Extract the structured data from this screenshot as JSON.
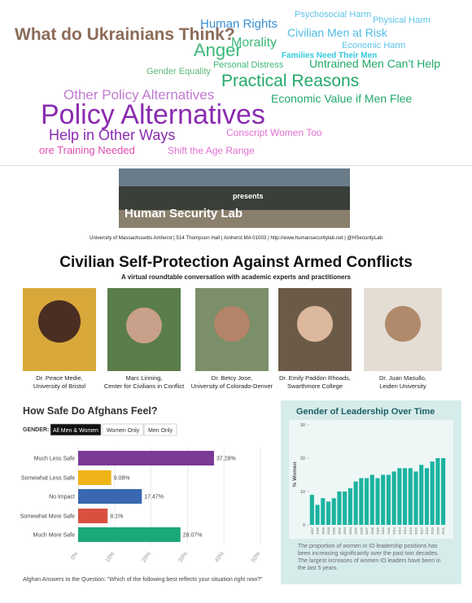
{
  "word_cloud": {
    "words": [
      {
        "text": "What do Ukrainians Think?",
        "color": "#8b6b58"
      },
      {
        "text": "Human Rights",
        "color": "#3a8fd0"
      },
      {
        "text": "Psychosocial Harm",
        "color": "#5cc3e8"
      },
      {
        "text": "Physical Harm",
        "color": "#5cc3e8"
      },
      {
        "text": "Morality",
        "color": "#3cb878"
      },
      {
        "text": "Civilian Men at Risk",
        "color": "#4fbde6"
      },
      {
        "text": "Economic Harm",
        "color": "#5cc3e8"
      },
      {
        "text": "Anger",
        "color": "#3cb878"
      },
      {
        "text": "Families Need Their Men",
        "color": "#33c9dd"
      },
      {
        "text": "Gender Equality",
        "color": "#5fb87a"
      },
      {
        "text": "Personal Distress",
        "color": "#3cb878"
      },
      {
        "text": "Untrained Men Can’t Help",
        "color": "#22a86a"
      },
      {
        "text": "Practical Reasons",
        "color": "#22a86a"
      },
      {
        "text": "Other Policy Alternatives",
        "color": "#c07ad0"
      },
      {
        "text": "Economic Value if Men Flee",
        "color": "#22a86a"
      },
      {
        "text": "Policy Alternatives",
        "color": "#8a2bb0"
      },
      {
        "text": "Help in Other Ways",
        "color": "#8a2bb0"
      },
      {
        "text": "Conscript Women Too",
        "color": "#e070d0"
      },
      {
        "text": "ore Training Needed",
        "color": "#e04cb0"
      },
      {
        "text": "Shift the Age Range",
        "color": "#e070d0"
      }
    ]
  },
  "banner": {
    "logo_text": "Human Security Lab",
    "presents": "presents",
    "address": "University of Massachusetts Amherst | 514 Thompson Hall | Amherst MA 01003 | http://www.humansecuritylab.net | @HSecurityLab"
  },
  "event": {
    "title": "Civilian Self-Protection Against Armed Conflicts",
    "subtitle": "A virtual roundtable conversation with academic experts and practitioners",
    "speakers": [
      {
        "name": "Dr. Peace Medie,",
        "affiliation": "University of Bristol"
      },
      {
        "name": "Marc Linning,",
        "affiliation": "Center for Civilians in Conflict"
      },
      {
        "name": "Dr. Betcy Jose,",
        "affiliation": "University of Colorado-Denver"
      },
      {
        "name": "Dr. Emily Paddon Rhoads,",
        "affiliation": "Swarthmore College"
      },
      {
        "name": "Dr. Juan Masullo,",
        "affiliation": "Leiden University"
      }
    ]
  },
  "chart_data": [
    {
      "type": "hbar",
      "title": "How Safe Do Afghans Feel?",
      "filter_label": "GENDER:",
      "filter_options": [
        "All Men & Women",
        "Women Only",
        "Men Only"
      ],
      "categories": [
        "Much Less Safe",
        "Somewhat Less Safe",
        "No Impact",
        "Somewhat More Safe",
        "Much More Safe"
      ],
      "values": [
        37.28,
        9.08,
        17.47,
        8.1,
        28.07
      ],
      "value_labels": [
        "37.28%",
        "9.08%",
        "17.47%",
        "8.1%",
        "28.07%"
      ],
      "colors": [
        "#7b3a96",
        "#f0b418",
        "#3a68b0",
        "#d9503f",
        "#1ba878"
      ],
      "xlim": [
        0,
        50
      ],
      "xticks": [
        {
          "value": 0,
          "label": "0%"
        },
        {
          "value": 10,
          "label": "10%"
        },
        {
          "value": 20,
          "label": "20%"
        },
        {
          "value": 30,
          "label": "30%"
        },
        {
          "value": 40,
          "label": "40%"
        },
        {
          "value": 50,
          "label": "50%"
        }
      ],
      "grid": true,
      "caption": "Afghan Answers to the Question: \"Which of the following best reflects your situation right now?\""
    },
    {
      "type": "bar",
      "title": "Gender of Leadership Over Time",
      "ylabel": "% Women",
      "categories": [
        "1997",
        "1998",
        "1999",
        "2000",
        "2001",
        "2002",
        "2003",
        "2004",
        "2005",
        "2006",
        "2007",
        "2008",
        "2009",
        "2010",
        "2011",
        "2012",
        "2013",
        "2014",
        "2015",
        "2016",
        "2017",
        "2018",
        "2019",
        "2020",
        "2021"
      ],
      "values": [
        9,
        6,
        8,
        7,
        8,
        10,
        10,
        11,
        13,
        14,
        14,
        15,
        14,
        15,
        15,
        16,
        17,
        17,
        17,
        16,
        18,
        17,
        19,
        20,
        20
      ],
      "color": "#1bb3a0",
      "ylim": [
        0,
        30
      ],
      "yticks": [
        0,
        10,
        20,
        30
      ],
      "note_lines": [
        "The proportion of women in IO leadership positions has",
        "been increasing significantly over the past two decades.",
        "The largest increases of women IO leaders have been in",
        "the last 5 years."
      ]
    }
  ]
}
